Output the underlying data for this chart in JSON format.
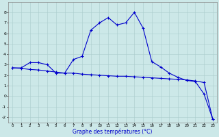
{
  "xlabel": "Graphe des températures (°C)",
  "background_color": "#cce8e8",
  "line_color": "#0000cc",
  "series1_x": [
    0,
    1,
    2,
    3,
    4,
    5,
    6,
    7,
    8,
    9,
    10,
    11,
    12,
    13,
    14,
    15,
    16,
    17,
    18,
    19,
    20,
    21,
    22,
    23
  ],
  "series1_y": [
    2.7,
    2.7,
    3.2,
    3.2,
    3.0,
    2.2,
    2.2,
    3.5,
    3.8,
    6.3,
    7.0,
    7.5,
    6.8,
    7.0,
    8.0,
    6.5,
    3.3,
    2.8,
    2.2,
    1.8,
    1.5,
    1.4,
    0.2,
    -2.2
  ],
  "series2_x": [
    0,
    1,
    2,
    3,
    4,
    5,
    6,
    7,
    8,
    9,
    10,
    11,
    12,
    13,
    14,
    15,
    16,
    17,
    18,
    19,
    20,
    21,
    22,
    23
  ],
  "series2_y": [
    2.7,
    2.65,
    2.55,
    2.5,
    2.4,
    2.3,
    2.2,
    2.2,
    2.1,
    2.05,
    2.0,
    1.95,
    1.9,
    1.9,
    1.85,
    1.8,
    1.75,
    1.7,
    1.65,
    1.6,
    1.55,
    1.45,
    1.3,
    -2.2
  ],
  "ylim": [
    -2.5,
    9.0
  ],
  "xlim": [
    -0.5,
    23.5
  ],
  "yticks": [
    -2,
    -1,
    0,
    1,
    2,
    3,
    4,
    5,
    6,
    7,
    8
  ],
  "xticks": [
    0,
    1,
    2,
    3,
    4,
    5,
    6,
    7,
    8,
    9,
    10,
    11,
    12,
    13,
    14,
    15,
    16,
    17,
    18,
    19,
    20,
    21,
    22,
    23
  ],
  "grid_color": "#aacccc",
  "marker_size": 3,
  "linewidth": 0.8
}
